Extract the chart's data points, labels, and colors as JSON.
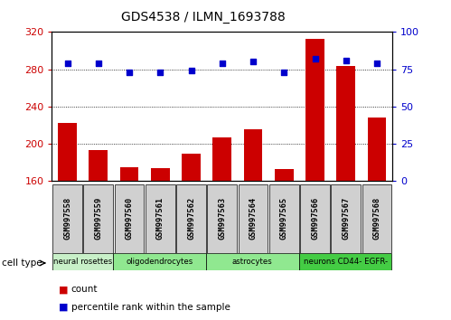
{
  "title": "GDS4538 / ILMN_1693788",
  "samples": [
    "GSM997558",
    "GSM997559",
    "GSM997560",
    "GSM997561",
    "GSM997562",
    "GSM997563",
    "GSM997564",
    "GSM997565",
    "GSM997566",
    "GSM997567",
    "GSM997568"
  ],
  "counts": [
    222,
    193,
    175,
    174,
    189,
    207,
    215,
    173,
    313,
    283,
    228
  ],
  "percentiles": [
    79,
    79,
    73,
    73,
    74,
    79,
    80,
    73,
    82,
    81,
    79
  ],
  "ylim_left": [
    160,
    320
  ],
  "ylim_right": [
    0,
    100
  ],
  "yticks_left": [
    160,
    200,
    240,
    280,
    320
  ],
  "yticks_right": [
    0,
    25,
    50,
    75,
    100
  ],
  "group_extents": [
    {
      "label": "neural rosettes",
      "xstart": -0.48,
      "xend": 1.48,
      "color": "#c8f0c8"
    },
    {
      "label": "oligodendrocytes",
      "xstart": 1.48,
      "xend": 4.48,
      "color": "#90e890"
    },
    {
      "label": "astrocytes",
      "xstart": 4.48,
      "xend": 7.48,
      "color": "#90e890"
    },
    {
      "label": "neurons CD44- EGFR-",
      "xstart": 7.48,
      "xend": 10.48,
      "color": "#44cc44"
    }
  ],
  "bar_color": "#cc0000",
  "dot_color": "#0000cc",
  "bar_width": 0.6,
  "tick_color_left": "#cc0000",
  "tick_color_right": "#0000cc",
  "background_color": "#ffffff",
  "cell_type_label": "cell type",
  "legend_items": [
    {
      "color": "#cc0000",
      "label": "count"
    },
    {
      "color": "#0000cc",
      "label": "percentile rank within the sample"
    }
  ],
  "sample_box_color": "#d0d0d0"
}
